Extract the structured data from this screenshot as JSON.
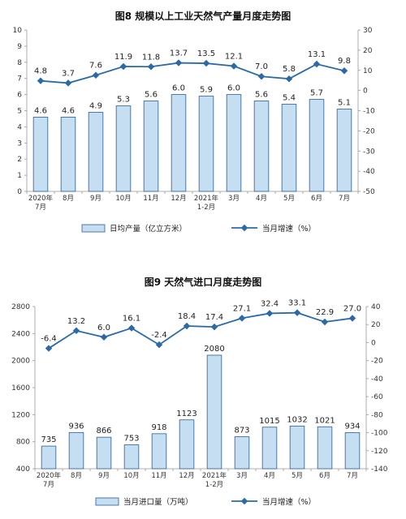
{
  "chart_data": [
    {
      "type": "bar",
      "title": "图8  规模以上工业天然气产量月度走势图",
      "categories": [
        "2020年\n7月",
        "8月",
        "9月",
        "10月",
        "11月",
        "12月",
        "2021年\n1-2月",
        "3月",
        "4月",
        "5月",
        "6月",
        "7月"
      ],
      "ylim": [
        0,
        10
      ],
      "y_ticks": [
        0,
        1,
        2,
        3,
        4,
        5,
        6,
        7,
        8,
        9,
        10
      ],
      "y2lim": [
        -50,
        30
      ],
      "y2_ticks": [
        -50,
        -40,
        -30,
        -20,
        -10,
        0,
        10,
        20,
        30
      ],
      "series": [
        {
          "name": "日均产量（亿立方米）",
          "kind": "bar",
          "axis": "left",
          "values": [
            4.6,
            4.6,
            4.9,
            5.3,
            5.6,
            6.0,
            5.9,
            6.0,
            5.6,
            5.4,
            5.7,
            5.1
          ]
        },
        {
          "name": "当月增速（%）",
          "kind": "line",
          "axis": "right",
          "values": [
            4.8,
            3.7,
            7.6,
            11.9,
            11.8,
            13.7,
            13.5,
            12.1,
            7.0,
            5.8,
            13.1,
            9.8
          ]
        }
      ],
      "grid": false,
      "legend": "bottom"
    },
    {
      "type": "bar",
      "title": "图9  天然气进口月度走势图",
      "categories": [
        "2020年\n7月",
        "8月",
        "9月",
        "10月",
        "11月",
        "12月",
        "2021年\n1-2月",
        "3月",
        "4月",
        "5月",
        "6月",
        "7月"
      ],
      "ylim": [
        400,
        2800
      ],
      "y_ticks": [
        400,
        800,
        1200,
        1600,
        2000,
        2400,
        2800
      ],
      "y2lim": [
        -140,
        40
      ],
      "y2_ticks": [
        -140,
        -120,
        -100,
        -80,
        -60,
        -40,
        -20,
        0,
        20,
        40
      ],
      "series": [
        {
          "name": "当月进口量（万吨）",
          "kind": "bar",
          "axis": "left",
          "values": [
            735,
            936,
            866,
            753,
            918,
            1123,
            2080,
            873,
            1015,
            1032,
            1021,
            934
          ]
        },
        {
          "name": "当月增速（%）",
          "kind": "line",
          "axis": "right",
          "values": [
            -6.4,
            13.2,
            6.0,
            16.1,
            -2.4,
            18.4,
            17.4,
            27.1,
            32.4,
            33.1,
            22.9,
            27.0
          ]
        }
      ],
      "grid": false,
      "legend": "bottom"
    }
  ]
}
